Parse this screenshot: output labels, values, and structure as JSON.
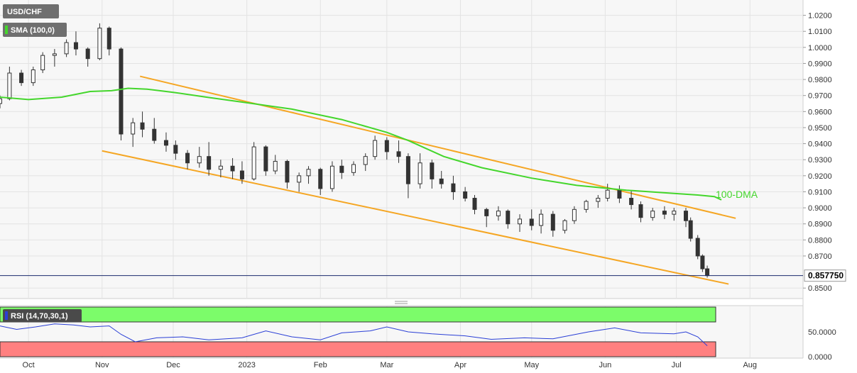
{
  "chart_data": {
    "type": "candlestick",
    "symbol": "USD/CHF",
    "indicator_label": "SMA (100,0)",
    "ma_label": "100-DMA",
    "current_price_label": "0.857750",
    "current_price": 0.85775,
    "y_ticks": [
      "1.0200",
      "1.0100",
      "1.0000",
      "0.9900",
      "0.9800",
      "0.9700",
      "0.9600",
      "0.9500",
      "0.9400",
      "0.9300",
      "0.9200",
      "0.9100",
      "0.9000",
      "0.8900",
      "0.8800",
      "0.8700",
      "0.8500"
    ],
    "ylim": [
      0.847,
      1.026
    ],
    "x_ticks": [
      "Oct",
      "Nov",
      "Dec",
      "2023",
      "Feb",
      "Mar",
      "Apr",
      "May",
      "Jun",
      "Jul",
      "Aug"
    ],
    "x_range": [
      "2022-09-19",
      "2023-08-12"
    ],
    "ohlc": [
      [
        "2022-09-19",
        0.965,
        0.97,
        0.962,
        0.968
      ],
      [
        "2022-09-23",
        0.968,
        0.988,
        0.967,
        0.984
      ],
      [
        "2022-09-28",
        0.984,
        0.986,
        0.976,
        0.978
      ],
      [
        "2022-10-03",
        0.978,
        0.988,
        0.976,
        0.986
      ],
      [
        "2022-10-07",
        0.986,
        0.997,
        0.984,
        0.995
      ],
      [
        "2022-10-12",
        0.995,
        0.999,
        0.988,
        0.996
      ],
      [
        "2022-10-17",
        0.996,
        1.005,
        0.994,
        1.003
      ],
      [
        "2022-10-21",
        1.003,
        1.01,
        0.995,
        0.999
      ],
      [
        "2022-10-26",
        0.999,
        1.0,
        0.988,
        0.993
      ],
      [
        "2022-10-31",
        0.993,
        1.015,
        0.992,
        1.012
      ],
      [
        "2022-11-04",
        1.012,
        1.013,
        0.995,
        0.999
      ],
      [
        "2022-11-09",
        0.999,
        1.0,
        0.942,
        0.946
      ],
      [
        "2022-11-14",
        0.946,
        0.956,
        0.938,
        0.953
      ],
      [
        "2022-11-18",
        0.953,
        0.96,
        0.944,
        0.949
      ],
      [
        "2022-11-23",
        0.949,
        0.956,
        0.94,
        0.942
      ],
      [
        "2022-11-28",
        0.942,
        0.947,
        0.935,
        0.939
      ],
      [
        "2022-12-02",
        0.939,
        0.942,
        0.93,
        0.934
      ],
      [
        "2022-12-07",
        0.934,
        0.936,
        0.924,
        0.928
      ],
      [
        "2022-12-12",
        0.928,
        0.938,
        0.925,
        0.932
      ],
      [
        "2022-12-16",
        0.932,
        0.941,
        0.92,
        0.924
      ],
      [
        "2022-12-21",
        0.924,
        0.93,
        0.919,
        0.926
      ],
      [
        "2022-12-26",
        0.926,
        0.931,
        0.918,
        0.923
      ],
      [
        "2022-12-30",
        0.923,
        0.929,
        0.915,
        0.918
      ],
      [
        "2023-01-04",
        0.918,
        0.941,
        0.917,
        0.938
      ],
      [
        "2023-01-09",
        0.938,
        0.939,
        0.92,
        0.923
      ],
      [
        "2023-01-13",
        0.923,
        0.933,
        0.921,
        0.929
      ],
      [
        "2023-01-18",
        0.929,
        0.93,
        0.912,
        0.916
      ],
      [
        "2023-01-23",
        0.916,
        0.922,
        0.91,
        0.92
      ],
      [
        "2023-01-27",
        0.92,
        0.926,
        0.915,
        0.924
      ],
      [
        "2023-02-01",
        0.924,
        0.925,
        0.908,
        0.912
      ],
      [
        "2023-02-06",
        0.912,
        0.929,
        0.91,
        0.926
      ],
      [
        "2023-02-10",
        0.926,
        0.93,
        0.918,
        0.922
      ],
      [
        "2023-02-15",
        0.922,
        0.929,
        0.92,
        0.927
      ],
      [
        "2023-02-20",
        0.927,
        0.934,
        0.923,
        0.932
      ],
      [
        "2023-02-24",
        0.932,
        0.945,
        0.93,
        0.942
      ],
      [
        "2023-03-01",
        0.942,
        0.944,
        0.93,
        0.935
      ],
      [
        "2023-03-06",
        0.935,
        0.942,
        0.928,
        0.932
      ],
      [
        "2023-03-10",
        0.932,
        0.934,
        0.906,
        0.915
      ],
      [
        "2023-03-15",
        0.915,
        0.934,
        0.912,
        0.928
      ],
      [
        "2023-03-20",
        0.928,
        0.93,
        0.912,
        0.918
      ],
      [
        "2023-03-24",
        0.918,
        0.923,
        0.912,
        0.915
      ],
      [
        "2023-03-29",
        0.915,
        0.92,
        0.905,
        0.91
      ],
      [
        "2023-04-03",
        0.91,
        0.913,
        0.904,
        0.906
      ],
      [
        "2023-04-07",
        0.906,
        0.908,
        0.896,
        0.899
      ],
      [
        "2023-04-12",
        0.899,
        0.9,
        0.888,
        0.895
      ],
      [
        "2023-04-17",
        0.895,
        0.901,
        0.892,
        0.898
      ],
      [
        "2023-04-21",
        0.898,
        0.899,
        0.887,
        0.89
      ],
      [
        "2023-04-26",
        0.89,
        0.896,
        0.885,
        0.893
      ],
      [
        "2023-05-01",
        0.893,
        0.899,
        0.886,
        0.889
      ],
      [
        "2023-05-05",
        0.889,
        0.899,
        0.884,
        0.896
      ],
      [
        "2023-05-10",
        0.896,
        0.898,
        0.882,
        0.886
      ],
      [
        "2023-05-15",
        0.886,
        0.893,
        0.884,
        0.892
      ],
      [
        "2023-05-19",
        0.892,
        0.901,
        0.89,
        0.899
      ],
      [
        "2023-05-24",
        0.899,
        0.905,
        0.897,
        0.904
      ],
      [
        "2023-05-29",
        0.904,
        0.908,
        0.9,
        0.906
      ],
      [
        "2023-06-02",
        0.906,
        0.915,
        0.904,
        0.911
      ],
      [
        "2023-06-07",
        0.911,
        0.914,
        0.903,
        0.906
      ],
      [
        "2023-06-12",
        0.906,
        0.911,
        0.899,
        0.902
      ],
      [
        "2023-06-16",
        0.902,
        0.904,
        0.891,
        0.894
      ],
      [
        "2023-06-21",
        0.894,
        0.9,
        0.892,
        0.898
      ],
      [
        "2023-06-26",
        0.898,
        0.901,
        0.893,
        0.896
      ],
      [
        "2023-06-30",
        0.896,
        0.9,
        0.892,
        0.898
      ],
      [
        "2023-07-05",
        0.898,
        0.9,
        0.888,
        0.892
      ],
      [
        "2023-07-07",
        0.892,
        0.894,
        0.879,
        0.881
      ],
      [
        "2023-07-10",
        0.881,
        0.883,
        0.868,
        0.87
      ],
      [
        "2023-07-12",
        0.87,
        0.871,
        0.86,
        0.862
      ],
      [
        "2023-07-14",
        0.862,
        0.864,
        0.8565,
        0.85775
      ]
    ],
    "sma100": [
      [
        "2022-09-19",
        0.969
      ],
      [
        "2022-10-01",
        0.9675
      ],
      [
        "2022-10-15",
        0.969
      ],
      [
        "2022-10-27",
        0.9725
      ],
      [
        "2022-11-05",
        0.973
      ],
      [
        "2022-11-12",
        0.9745
      ],
      [
        "2022-11-20",
        0.974
      ],
      [
        "2022-12-01",
        0.972
      ],
      [
        "2022-12-15",
        0.969
      ],
      [
        "2023-01-01",
        0.9655
      ],
      [
        "2023-01-20",
        0.9615
      ],
      [
        "2023-02-10",
        0.955
      ],
      [
        "2023-03-01",
        0.947
      ],
      [
        "2023-03-10",
        0.942
      ],
      [
        "2023-03-25",
        0.932
      ],
      [
        "2023-04-10",
        0.925
      ],
      [
        "2023-05-01",
        0.9185
      ],
      [
        "2023-05-20",
        0.914
      ],
      [
        "2023-06-10",
        0.911
      ],
      [
        "2023-06-25",
        0.9095
      ],
      [
        "2023-07-10",
        0.908
      ],
      [
        "2023-07-17",
        0.907
      ],
      [
        "2023-07-20",
        0.905
      ]
    ],
    "trend_upper": [
      [
        "2022-11-17",
        0.982
      ],
      [
        "2023-07-26",
        0.8935
      ]
    ],
    "trend_lower": [
      [
        "2022-11-01",
        0.9355
      ],
      [
        "2023-07-23",
        0.8525
      ]
    ],
    "rsi": {
      "label": "RSI (14,70,30,1)",
      "y_ticks": [
        "50.0000",
        "0.0000"
      ],
      "upper_level": 70,
      "lower_level": 30,
      "values": [
        [
          "2022-09-19",
          62
        ],
        [
          "2022-09-26",
          55
        ],
        [
          "2022-10-04",
          60
        ],
        [
          "2022-10-12",
          66
        ],
        [
          "2022-10-20",
          64
        ],
        [
          "2022-10-27",
          60
        ],
        [
          "2022-11-04",
          62
        ],
        [
          "2022-11-09",
          45
        ],
        [
          "2022-11-15",
          30
        ],
        [
          "2022-11-24",
          38
        ],
        [
          "2022-12-05",
          40
        ],
        [
          "2022-12-16",
          34
        ],
        [
          "2022-12-30",
          38
        ],
        [
          "2023-01-09",
          52
        ],
        [
          "2023-01-20",
          40
        ],
        [
          "2023-02-01",
          34
        ],
        [
          "2023-02-10",
          48
        ],
        [
          "2023-02-22",
          52
        ],
        [
          "2023-03-01",
          60
        ],
        [
          "2023-03-10",
          50
        ],
        [
          "2023-03-20",
          46
        ],
        [
          "2023-04-03",
          42
        ],
        [
          "2023-04-14",
          35
        ],
        [
          "2023-04-28",
          38
        ],
        [
          "2023-05-10",
          36
        ],
        [
          "2023-05-25",
          50
        ],
        [
          "2023-06-05",
          58
        ],
        [
          "2023-06-16",
          48
        ],
        [
          "2023-06-30",
          46
        ],
        [
          "2023-07-05",
          50
        ],
        [
          "2023-07-10",
          40
        ],
        [
          "2023-07-14",
          22
        ]
      ]
    }
  }
}
